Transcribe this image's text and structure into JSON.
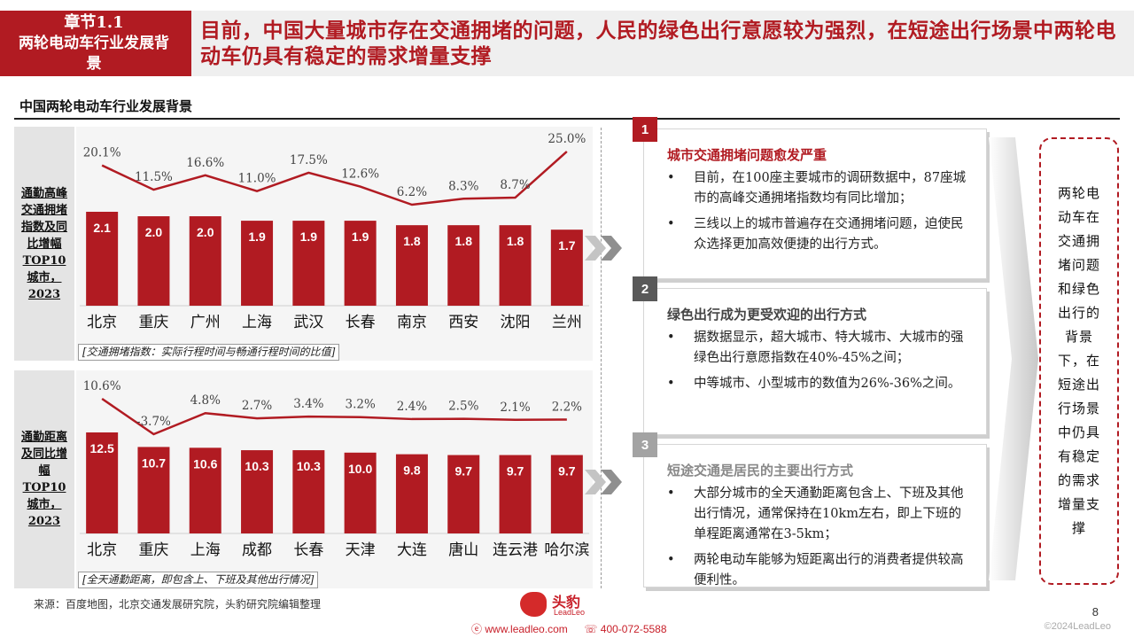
{
  "header": {
    "chapter_number": "章节1.1",
    "chapter_name": "两轮电动车行业发展背景",
    "title": "目前，中国大量城市存在交通拥堵的问题，人民的绿色出行意愿较为强烈，在短途出行场景中两轮电动车仍具有稳定的需求增量支撑"
  },
  "section_title": "中国两轮电动车行业发展背景",
  "colors": {
    "brand_red": "#b11b22",
    "bar_red": "#b11b22",
    "line_red": "#b11b22",
    "badge_gray": "#a3a3a3",
    "badge_dark": "#595959"
  },
  "chart_data": [
    {
      "type": "bar",
      "side_label": "通勤高峰交通拥堵指数及同比增幅TOP10城市，2023",
      "categories": [
        "北京",
        "重庆",
        "广州",
        "上海",
        "武汉",
        "长春",
        "南京",
        "西安",
        "沈阳",
        "兰州"
      ],
      "series": [
        {
          "values": [
            2.1,
            2.0,
            2.0,
            1.9,
            1.9,
            1.9,
            1.8,
            1.8,
            1.8,
            1.7
          ],
          "labels": [
            "2.1",
            "2.0",
            "2.0",
            "1.9",
            "1.9",
            "1.9",
            "1.8",
            "1.8",
            "1.8",
            "1.7"
          ]
        },
        {
          "type": "line",
          "values": [
            20.1,
            11.5,
            16.6,
            11.0,
            17.5,
            12.6,
            6.2,
            8.3,
            8.7,
            25.0
          ],
          "labels": [
            "20.1%",
            "11.5%",
            "16.6%",
            "11.0%",
            "17.5%",
            "12.6%",
            "6.2%",
            "8.3%",
            "8.7%",
            "25.0%"
          ]
        }
      ],
      "note": "[交通拥堵指数：实际行程时间与畅通行程时间的比值]"
    },
    {
      "type": "bar",
      "side_label": "通勤距离及同比增幅TOP10城市，2023",
      "categories": [
        "北京",
        "重庆",
        "上海",
        "成都",
        "长春",
        "天津",
        "大连",
        "唐山",
        "连云港",
        "哈尔滨"
      ],
      "series": [
        {
          "values": [
            12.5,
            10.7,
            10.6,
            10.3,
            10.3,
            10.0,
            9.8,
            9.7,
            9.7,
            9.7
          ],
          "labels": [
            "12.5",
            "10.7",
            "10.6",
            "10.3",
            "10.3",
            "10.0",
            "9.8",
            "9.7",
            "9.7",
            "9.7"
          ]
        },
        {
          "type": "line",
          "values": [
            10.6,
            -3.7,
            4.8,
            2.7,
            3.4,
            3.2,
            2.4,
            2.5,
            2.1,
            2.2
          ],
          "labels": [
            "10.6%",
            "-3.7%",
            "4.8%",
            "2.7%",
            "3.4%",
            "3.2%",
            "2.4%",
            "2.5%",
            "2.1%",
            "2.2%"
          ]
        }
      ],
      "note": "[全天通勤距离，即包含上、下班及其他出行情况]"
    }
  ],
  "cards": [
    {
      "number": "1",
      "heading": "城市交通拥堵问题愈发严重",
      "bullets": [
        "目前，在100座主要城市的调研数据中，87座城市的高峰交通拥堵指数均有同比增加；",
        "三线以上的城市普遍存在交通拥堵问题，迫使民众选择更加高效便捷的出行方式。"
      ]
    },
    {
      "number": "2",
      "heading": "绿色出行成为更受欢迎的出行方式",
      "bullets": [
        "据数据显示，超大城市、特大城市、大城市的强绿色出行意愿指数在40%-45%之间；",
        "中等城市、小型城市的数值为26%-36%之间。"
      ]
    },
    {
      "number": "3",
      "heading": "短途交通是居民的主要出行方式",
      "bullets": [
        "大部分城市的全天通勤距离包含上、下班及其他出行情况，通常保持在10km左右，即上下班的单程距离通常在3-5km；",
        "两轮电动车能够为短距离出行的消费者提供较高便利性。"
      ]
    }
  ],
  "summary": "两轮电动车在交通拥堵问题和绿色出行的背景下，在短途出行场景中仍具有稳定的需求增量支撑",
  "source": "来源：百度地图，北京交通发展研究院，头豹研究院编辑整理",
  "footer": {
    "logo_name": "头豹",
    "logo_sub": "LeadLeo",
    "website": "www.leadleo.com",
    "phone": "400-072-5588",
    "page": "8",
    "copyright": "©2024LeadLeo"
  }
}
